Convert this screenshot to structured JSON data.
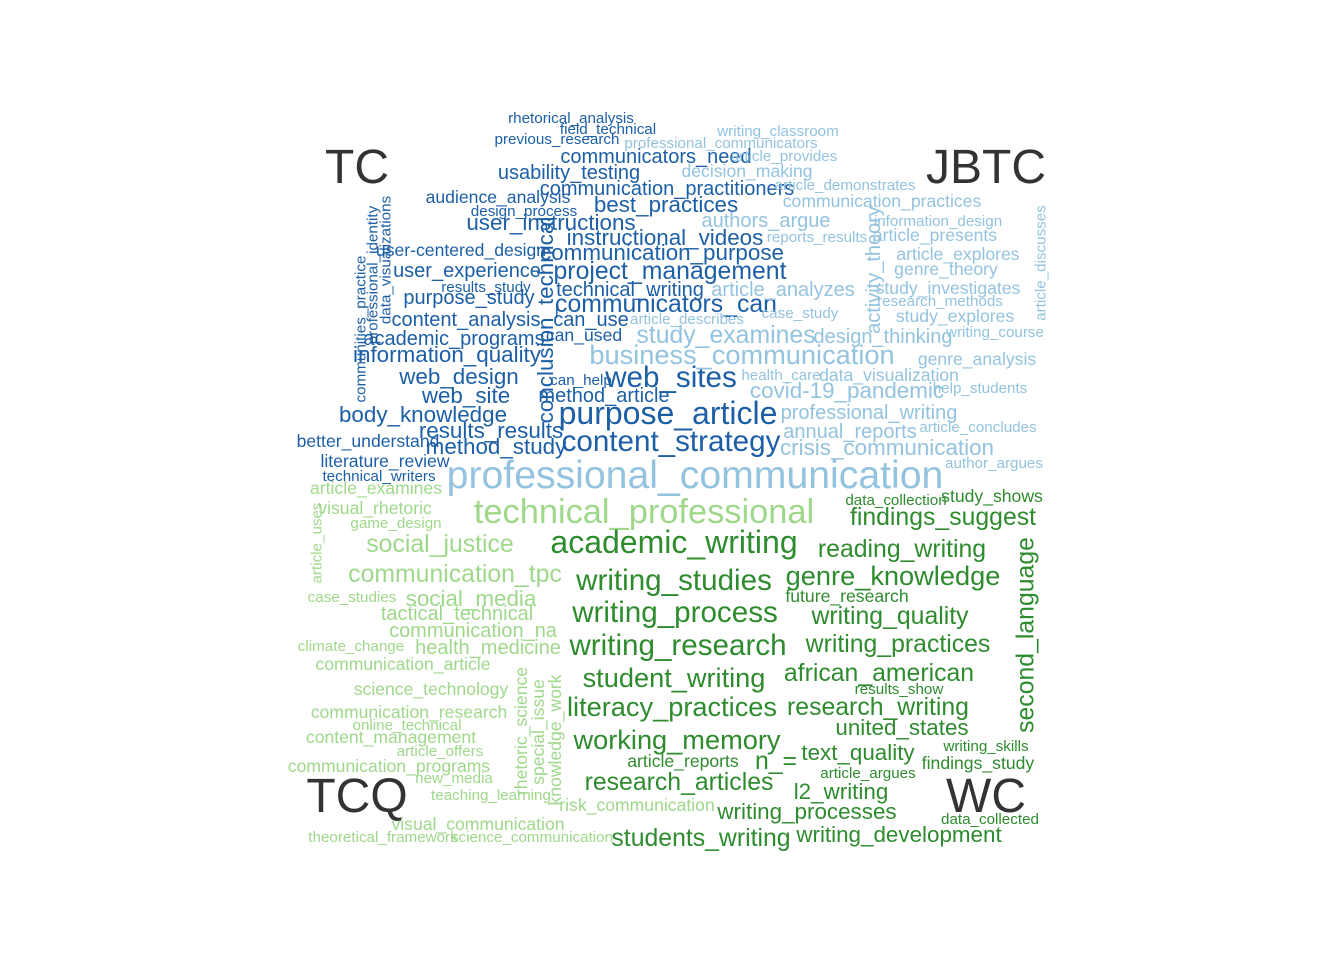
{
  "chart_data": {
    "type": "comparison_wordcloud",
    "journals": [
      "TC",
      "JBTC",
      "TCQ",
      "WC"
    ],
    "colors": {
      "TC": "#1c5fa6",
      "JBTC": "#93c3df",
      "TCQ": "#9fd88b",
      "WC": "#2e8b2e"
    },
    "groups": [
      {
        "journal": "TC",
        "words": [
          {
            "text": "rhetorical_analysis",
            "w": 3
          },
          {
            "text": "field_technical",
            "w": 3
          },
          {
            "text": "previous_research",
            "w": 3
          },
          {
            "text": "communicators_need",
            "w": 5
          },
          {
            "text": "usability_testing",
            "w": 5
          },
          {
            "text": "communication_practitioners",
            "w": 5
          },
          {
            "text": "audience_analysis",
            "w": 4
          },
          {
            "text": "best_practices",
            "w": 6
          },
          {
            "text": "design_process",
            "w": 3
          },
          {
            "text": "user_instructions",
            "w": 6
          },
          {
            "text": "instructional_videos",
            "w": 6
          },
          {
            "text": "user-centered_design",
            "w": 4
          },
          {
            "text": "communication_purpose",
            "w": 6
          },
          {
            "text": "project_management",
            "w": 7
          },
          {
            "text": "user_experience",
            "w": 5
          },
          {
            "text": "results_study",
            "w": 3
          },
          {
            "text": "technical_writing",
            "w": 5
          },
          {
            "text": "purpose_study",
            "w": 5
          },
          {
            "text": "communicators_can",
            "w": 7
          },
          {
            "text": "content_analysis",
            "w": 5
          },
          {
            "text": "can_use",
            "w": 5
          },
          {
            "text": "can_used",
            "w": 4
          },
          {
            "text": "academic_programs",
            "w": 5
          },
          {
            "text": "information_quality",
            "w": 6
          },
          {
            "text": "web_design",
            "w": 6
          },
          {
            "text": "can_help",
            "w": 3
          },
          {
            "text": "web_sites",
            "w": 9
          },
          {
            "text": "method_article",
            "w": 5
          },
          {
            "text": "web_site",
            "w": 6
          },
          {
            "text": "body_knowledge",
            "w": 6
          },
          {
            "text": "purpose_article",
            "w": 10
          },
          {
            "text": "results_results",
            "w": 6
          },
          {
            "text": "content_strategy",
            "w": 9
          },
          {
            "text": "better_understand",
            "w": 4
          },
          {
            "text": "method_study",
            "w": 6
          },
          {
            "text": "literature_review",
            "w": 4
          },
          {
            "text": "technical_writers",
            "w": 3
          },
          {
            "text": "communities_practice",
            "w": 3
          },
          {
            "text": "professional_identity",
            "w": 3
          },
          {
            "text": "data_visualizations",
            "w": 3
          },
          {
            "text": "conclusion_technical",
            "w": 6
          }
        ]
      },
      {
        "journal": "JBTC",
        "words": [
          {
            "text": "writing_classroom",
            "w": 3
          },
          {
            "text": "professional_communicators",
            "w": 3
          },
          {
            "text": "article_provides",
            "w": 3
          },
          {
            "text": "decision_making",
            "w": 4
          },
          {
            "text": "article_demonstrates",
            "w": 3
          },
          {
            "text": "communication_practices",
            "w": 4
          },
          {
            "text": "authors_argue",
            "w": 5
          },
          {
            "text": "information_design",
            "w": 3
          },
          {
            "text": "reports_results",
            "w": 3
          },
          {
            "text": "article_presents",
            "w": 4
          },
          {
            "text": "article_explores",
            "w": 4
          },
          {
            "text": "genre_theory",
            "w": 4
          },
          {
            "text": "article_analyzes",
            "w": 5
          },
          {
            "text": "study_investigates",
            "w": 4
          },
          {
            "text": "research_methods",
            "w": 3
          },
          {
            "text": "case_study",
            "w": 3
          },
          {
            "text": "study_explores",
            "w": 4
          },
          {
            "text": "article_describes",
            "w": 3
          },
          {
            "text": "writing_course",
            "w": 3
          },
          {
            "text": "study_examines",
            "w": 7
          },
          {
            "text": "design_thinking",
            "w": 5
          },
          {
            "text": "business_communication",
            "w": 8
          },
          {
            "text": "genre_analysis",
            "w": 4
          },
          {
            "text": "health_care",
            "w": 3
          },
          {
            "text": "data_visualization",
            "w": 4
          },
          {
            "text": "covid-19_pandemic",
            "w": 6
          },
          {
            "text": "help_students",
            "w": 3
          },
          {
            "text": "professional_writing",
            "w": 5
          },
          {
            "text": "article_concludes",
            "w": 3
          },
          {
            "text": "annual_reports",
            "w": 5
          },
          {
            "text": "crisis_communication",
            "w": 6
          },
          {
            "text": "author_argues",
            "w": 3
          },
          {
            "text": "professional_communication",
            "w": 13
          },
          {
            "text": "activity_theory",
            "w": 5
          },
          {
            "text": "article_discusses",
            "w": 3
          }
        ]
      },
      {
        "journal": "TCQ",
        "words": [
          {
            "text": "article_examines",
            "w": 4
          },
          {
            "text": "technical_professional",
            "w": 11
          },
          {
            "text": "visual_rhetoric",
            "w": 4
          },
          {
            "text": "game_design",
            "w": 3
          },
          {
            "text": "social_justice",
            "w": 7
          },
          {
            "text": "communication_tpc",
            "w": 7
          },
          {
            "text": "case_studies",
            "w": 3
          },
          {
            "text": "social_media",
            "w": 6
          },
          {
            "text": "tactical_technical",
            "w": 5
          },
          {
            "text": "communication_na",
            "w": 5
          },
          {
            "text": "climate_change",
            "w": 3
          },
          {
            "text": "health_medicine",
            "w": 5
          },
          {
            "text": "communication_article",
            "w": 4
          },
          {
            "text": "science_technology",
            "w": 4
          },
          {
            "text": "communication_research",
            "w": 4
          },
          {
            "text": "online_technical",
            "w": 3
          },
          {
            "text": "content_management",
            "w": 4
          },
          {
            "text": "article_offers",
            "w": 3
          },
          {
            "text": "communication_programs",
            "w": 4
          },
          {
            "text": "new_media",
            "w": 3
          },
          {
            "text": "teaching_learning",
            "w": 3
          },
          {
            "text": "risk_communication",
            "w": 4
          },
          {
            "text": "visual_communication",
            "w": 4
          },
          {
            "text": "theoretical_framework",
            "w": 3
          },
          {
            "text": "science_communication",
            "w": 3
          },
          {
            "text": "article_uses",
            "w": 3
          },
          {
            "text": "rhetoric_science",
            "w": 4
          },
          {
            "text": "special_issue",
            "w": 4
          },
          {
            "text": "knowledge_work",
            "w": 4
          }
        ]
      },
      {
        "journal": "WC",
        "words": [
          {
            "text": "data_collection",
            "w": 3
          },
          {
            "text": "study_shows",
            "w": 4
          },
          {
            "text": "findings_suggest",
            "w": 7
          },
          {
            "text": "academic_writing",
            "w": 10
          },
          {
            "text": "reading_writing",
            "w": 7
          },
          {
            "text": "writing_studies",
            "w": 9
          },
          {
            "text": "genre_knowledge",
            "w": 8
          },
          {
            "text": "future_research",
            "w": 4
          },
          {
            "text": "writing_process",
            "w": 9
          },
          {
            "text": "writing_quality",
            "w": 7
          },
          {
            "text": "writing_research",
            "w": 9
          },
          {
            "text": "writing_practices",
            "w": 7
          },
          {
            "text": "student_writing",
            "w": 8
          },
          {
            "text": "african_american",
            "w": 7
          },
          {
            "text": "results_show",
            "w": 3
          },
          {
            "text": "literacy_practices",
            "w": 8
          },
          {
            "text": "research_writing",
            "w": 7
          },
          {
            "text": "united_states",
            "w": 6
          },
          {
            "text": "working_memory",
            "w": 8
          },
          {
            "text": "text_quality",
            "w": 6
          },
          {
            "text": "writing_skills",
            "w": 3
          },
          {
            "text": "article_reports",
            "w": 4
          },
          {
            "text": "n_=",
            "w": 7
          },
          {
            "text": "findings_study",
            "w": 4
          },
          {
            "text": "article_argues",
            "w": 3
          },
          {
            "text": "research_articles",
            "w": 7
          },
          {
            "text": "l2_writing",
            "w": 6
          },
          {
            "text": "writing_processes",
            "w": 6
          },
          {
            "text": "data_collected",
            "w": 3
          },
          {
            "text": "students_writing",
            "w": 7
          },
          {
            "text": "writing_development",
            "w": 6
          },
          {
            "text": "second_language",
            "w": 7
          }
        ]
      }
    ]
  }
}
